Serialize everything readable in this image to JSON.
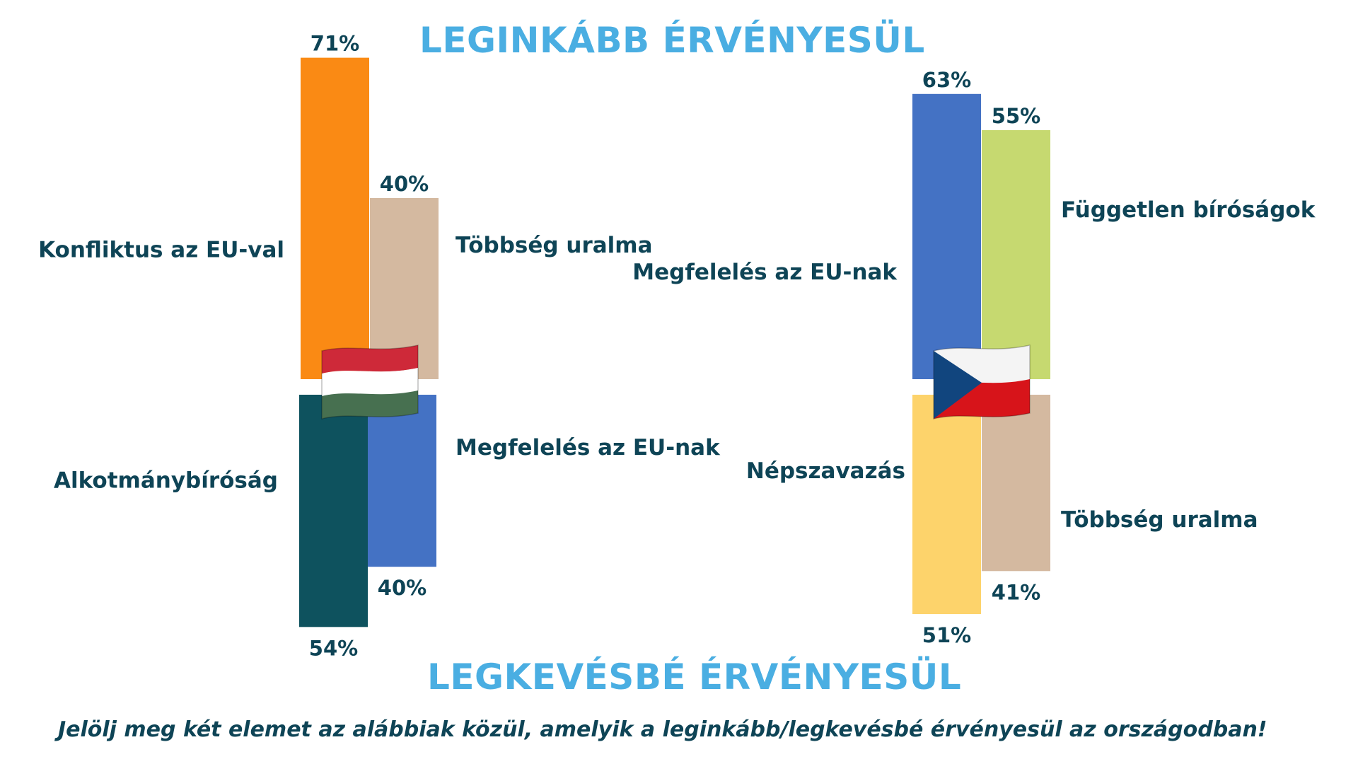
{
  "header": {
    "title_top": "LEGINKÁBB ÉRVÉNYESÜL"
  },
  "footer": {
    "title_bottom": "LEGKEVÉSBÉ ÉRVÉNYESÜL",
    "question": "Jelölj meg két elemet az alábbiak közül, amelyik a leginkább/legkevésbé érvényesül az országodban!"
  },
  "colors": {
    "title": "#4aaee2",
    "text": "#0e4456",
    "orange": "#fa8a14",
    "tan": "#d4b9a0",
    "teal": "#0e525e",
    "blue": "#4472c4",
    "green": "#c6d970",
    "yellow": "#fdd36b"
  },
  "chart_data": [
    {
      "type": "bar",
      "country": "Hungary",
      "flag": "hungary-flag",
      "max_scale": 71,
      "most": [
        {
          "label": "Konfliktus az EU-val",
          "value": 71,
          "value_label": "71%",
          "color": "#fa8a14"
        },
        {
          "label": "Többség uralma",
          "value": 40,
          "value_label": "40%",
          "color": "#d4b9a0"
        }
      ],
      "least": [
        {
          "label": "Alkotmánybíróság",
          "value": 54,
          "value_label": "54%",
          "color": "#0e525e"
        },
        {
          "label": "Megfelelés az EU-nak",
          "value": 40,
          "value_label": "40%",
          "color": "#4472c4"
        }
      ]
    },
    {
      "type": "bar",
      "country": "Czech Republic",
      "flag": "czech-flag",
      "max_scale": 71,
      "most": [
        {
          "label": "Megfelelés az EU-nak",
          "value": 63,
          "value_label": "63%",
          "color": "#4472c4"
        },
        {
          "label": "Független bíróságok",
          "value": 55,
          "value_label": "55%",
          "color": "#c6d970"
        }
      ],
      "least": [
        {
          "label": "Népszavazás",
          "value": 51,
          "value_label": "51%",
          "color": "#fdd36b"
        },
        {
          "label": "Többség uralma",
          "value": 41,
          "value_label": "41%",
          "color": "#d4b9a0"
        }
      ]
    }
  ]
}
